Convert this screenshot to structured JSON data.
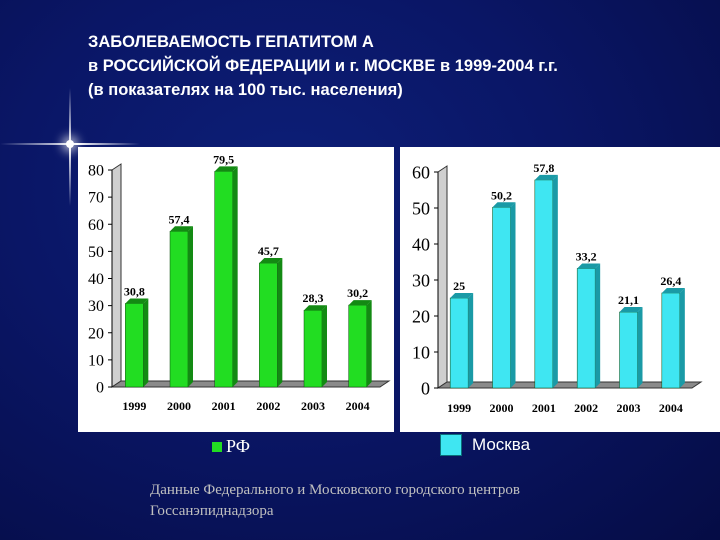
{
  "title": {
    "line1": "ЗАБОЛЕВАЕМОСТЬ ГЕПАТИТОМ А",
    "line2": "в РОССИЙСКОЙ ФЕДЕРАЦИИ и г. МОСКВЕ в 1999-2004 г.г.",
    "line3": "(в показателях на 100 тыс. населения)"
  },
  "colors": {
    "background": "#0a1666",
    "rf_bar": "#22dd22",
    "moscow_bar": "#3fe6f2",
    "plot_bg": "#ffffff"
  },
  "chart_data": [
    {
      "type": "bar",
      "categories": [
        "1999",
        "2000",
        "2001",
        "2002",
        "2003",
        "2004"
      ],
      "series": [
        {
          "name": "РФ",
          "values": [
            30.8,
            57.4,
            79.5,
            45.7,
            28.3,
            30.2
          ]
        }
      ],
      "data_labels": [
        "30,8",
        "57,4",
        "79,5",
        "45,7",
        "28,3",
        "30,2"
      ],
      "y_ticks": [
        "0",
        "10",
        "20",
        "30",
        "40",
        "50",
        "60",
        "70",
        "80"
      ],
      "ylim": [
        0,
        80
      ],
      "grid": false,
      "legend": "bottom"
    },
    {
      "type": "bar",
      "categories": [
        "1999",
        "2000",
        "2001",
        "2002",
        "2003",
        "2004"
      ],
      "series": [
        {
          "name": "Москва",
          "values": [
            25,
            50.2,
            57.8,
            33.2,
            21.1,
            26.4
          ]
        }
      ],
      "data_labels": [
        "25",
        "50,2",
        "57,8",
        "33,2",
        "21,1",
        "26,4"
      ],
      "y_ticks": [
        "0",
        "10",
        "20",
        "30",
        "40",
        "50",
        "60"
      ],
      "ylim": [
        0,
        60
      ],
      "grid": false,
      "legend": "bottom"
    }
  ],
  "legend": {
    "rf": "РФ",
    "moscow": "Москва"
  },
  "source": {
    "line1": "Данные Федерального и Московского городского центров",
    "line2": "Госсанэпиднадзора"
  }
}
